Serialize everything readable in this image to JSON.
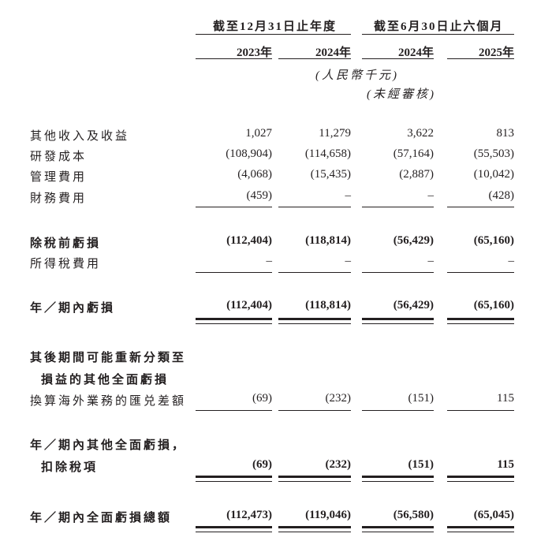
{
  "header": {
    "group1": "截至12月31日止年度",
    "group2": "截至6月30日止六個月",
    "years": [
      "2023年",
      "2024年",
      "2024年",
      "2025年"
    ],
    "currency": "(人民幣千元)",
    "unaudited": "(未經審核)"
  },
  "rows": [
    {
      "label": "其他收入及收益",
      "values": [
        "1,027",
        "11,279",
        "3,622",
        "813"
      ]
    },
    {
      "label": "研發成本",
      "values": [
        "(108,904)",
        "(114,658)",
        "(57,164)",
        "(55,503)"
      ]
    },
    {
      "label": "管理費用",
      "values": [
        "(4,068)",
        "(15,435)",
        "(2,887)",
        "(10,042)"
      ]
    },
    {
      "label": "財務費用",
      "values": [
        "(459)",
        "–",
        "–",
        "(428)"
      ]
    },
    {
      "label": "除稅前虧損",
      "values": [
        "(112,404)",
        "(118,814)",
        "(56,429)",
        "(65,160)"
      ]
    },
    {
      "label": "所得稅費用",
      "values": [
        "–",
        "–",
        "–",
        "–"
      ]
    },
    {
      "label": "年／期內虧損",
      "values": [
        "(112,404)",
        "(118,814)",
        "(56,429)",
        "(65,160)"
      ]
    },
    {
      "label": "其後期間可能重新分類至",
      "label2": "損益的其他全面虧損"
    },
    {
      "label": "換算海外業務的匯兑差額",
      "values": [
        "(69)",
        "(232)",
        "(151)",
        "115"
      ]
    },
    {
      "label": "年／期內其他全面虧損，",
      "label2": "扣除稅項",
      "values": [
        "(69)",
        "(232)",
        "(151)",
        "115"
      ]
    },
    {
      "label": "年／期內全面虧損總額",
      "values": [
        "(112,473)",
        "(119,046)",
        "(56,580)",
        "(65,045)"
      ]
    }
  ]
}
